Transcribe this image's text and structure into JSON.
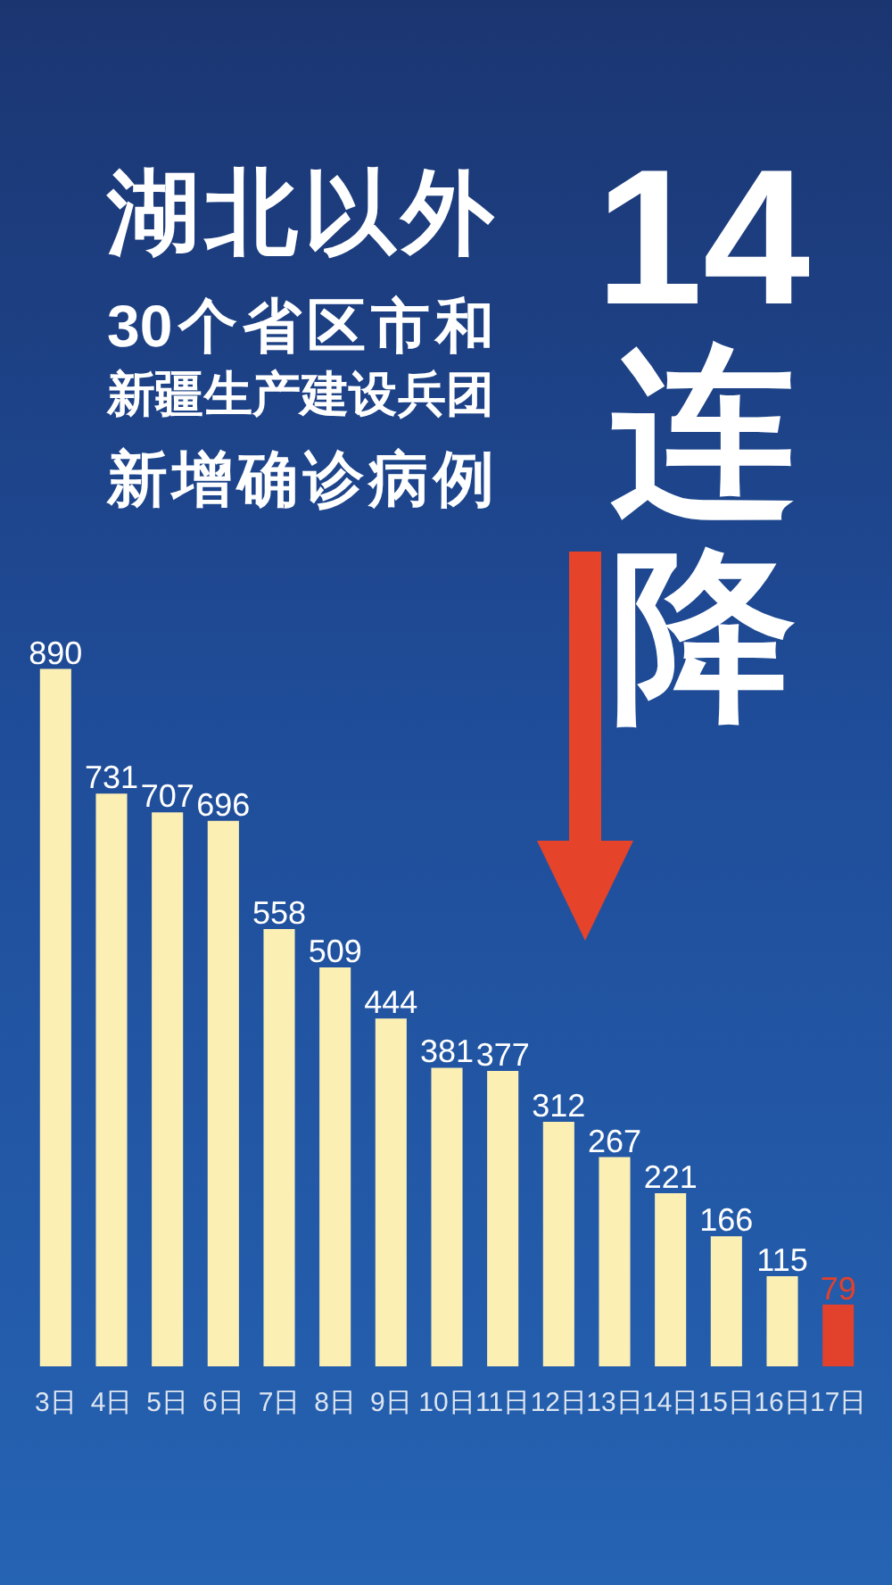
{
  "chart_data": {
    "type": "bar",
    "title": "湖北以外30个省区市和新疆生产建设兵团新增确诊病例",
    "subtitle": "14连降",
    "categories": [
      "3日",
      "4日",
      "5日",
      "6日",
      "7日",
      "8日",
      "9日",
      "10日",
      "11日",
      "12日",
      "13日",
      "14日",
      "15日",
      "16日",
      "17日"
    ],
    "values": [
      890,
      731,
      707,
      696,
      558,
      509,
      444,
      381,
      377,
      312,
      267,
      221,
      166,
      115,
      79
    ],
    "colors": [
      "#fcefb4",
      "#fcefb4",
      "#fcefb4",
      "#fcefb4",
      "#fcefb4",
      "#fcefb4",
      "#fcefb4",
      "#fcefb4",
      "#fcefb4",
      "#fcefb4",
      "#fcefb4",
      "#fcefb4",
      "#fcefb4",
      "#fcefb4",
      "#e2412b"
    ],
    "data_labels": true,
    "tick_labels": "x",
    "grid": false
  }
}
